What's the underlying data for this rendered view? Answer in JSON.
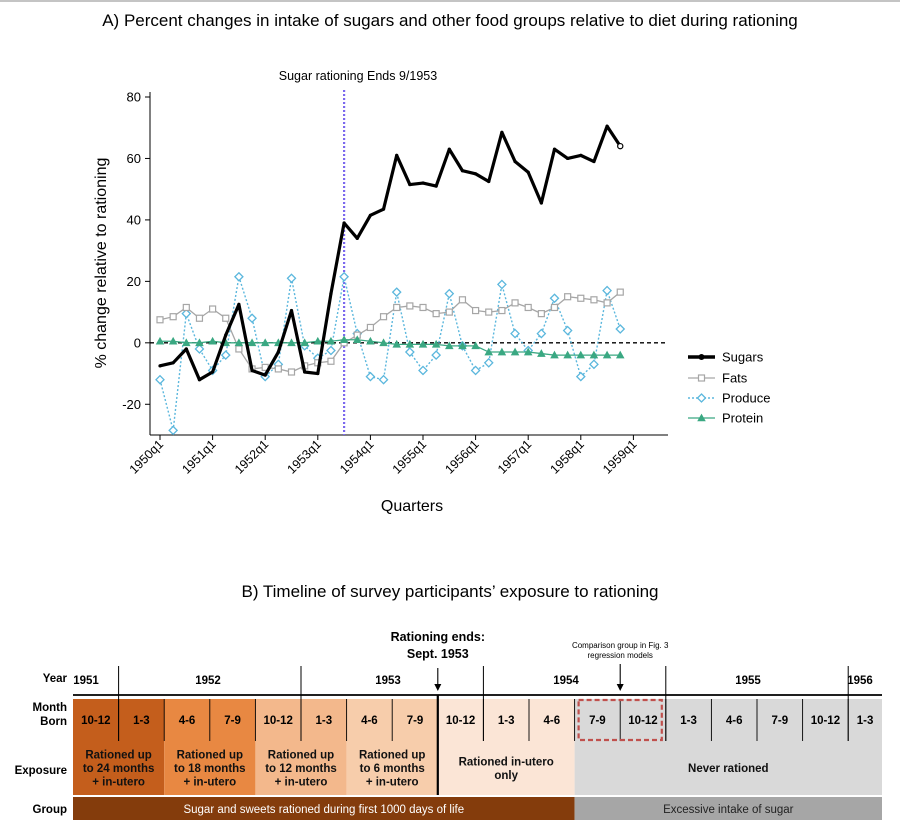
{
  "panel_a": {
    "title": "A) Percent changes in intake of sugars and other food groups relative to diet during rationing",
    "annotation": "Sugar rationing Ends 9/1953"
  },
  "panel_b": {
    "title": "B) Timeline of survey participants’ exposure to rationing",
    "rationing_ends_label": [
      "Rationing ends:",
      "Sept. 1953"
    ],
    "comparison_label": [
      "Comparison group in Fig. 3",
      "regression models"
    ],
    "row_labels": {
      "year": "Year",
      "month": [
        "Month",
        "Born"
      ],
      "exposure": "Exposure",
      "group": "Group"
    },
    "years": [
      "1951",
      "1952",
      "1953",
      "1954",
      "1955",
      "1956"
    ],
    "months": [
      "10-12",
      "1-3",
      "4-6",
      "7-9",
      "10-12",
      "1-3",
      "4-6",
      "7-9",
      "10-12",
      "1-3",
      "4-6",
      "7-9",
      "10-12",
      "1-3",
      "4-6",
      "7-9",
      "10-12",
      "1-3"
    ],
    "exposures": [
      [
        "Rationed up",
        "to 24 months",
        "+ in-utero"
      ],
      [
        "Rationed up",
        "to 18 months",
        "+ in-utero"
      ],
      [
        "Rationed up",
        "to 12 months",
        "+ in-utero"
      ],
      [
        "Rationed up",
        "to 6 months",
        "+ in-utero"
      ],
      [
        "Rationed in-utero",
        "only"
      ],
      [
        "Never rationed"
      ]
    ],
    "groups": [
      "Sugar and sweets rationed during first 1000 days of life",
      "Excessive intake of sugar"
    ],
    "colors": {
      "c24": "#c45e1c",
      "c18": "#e88842",
      "c12": "#f3b88c",
      "c6": "#f7cdab",
      "utero": "#fbe5d6",
      "never": "#d9d9d9",
      "group1": "#843c0c",
      "group2": "#a6a6a6",
      "dashed_box": "#c0504d"
    }
  },
  "chart_data": {
    "type": "line",
    "title": "A) Percent changes in intake of sugars and other food groups relative to diet during rationing",
    "xlabel": "Quarters",
    "ylabel": "% change relative to rationing",
    "ylim": [
      -30,
      80
    ],
    "yticks": [
      -20,
      0,
      20,
      40,
      60,
      80
    ],
    "x_tick_labels": [
      "1950q1",
      "1951q1",
      "1952q1",
      "1953q1",
      "1954q1",
      "1955q1",
      "1956q1",
      "1957q1",
      "1958q1",
      "1959q1"
    ],
    "x": [
      "1950q1",
      "1950q2",
      "1950q3",
      "1950q4",
      "1951q1",
      "1951q2",
      "1951q3",
      "1951q4",
      "1952q1",
      "1952q2",
      "1952q3",
      "1952q4",
      "1953q1",
      "1953q2",
      "1953q3",
      "1953q4",
      "1954q1",
      "1954q2",
      "1954q3",
      "1954q4",
      "1955q1",
      "1955q2",
      "1955q3",
      "1955q4",
      "1956q1",
      "1956q2",
      "1956q3",
      "1956q4",
      "1957q1",
      "1957q2",
      "1957q3",
      "1957q4",
      "1958q1",
      "1958q2",
      "1958q3",
      "1958q4",
      "1959q1"
    ],
    "reference_line": {
      "y": 0,
      "style": "dashed"
    },
    "event_line": {
      "x": "1953q3",
      "label": "Sugar rationing Ends 9/1953",
      "color": "#7b68ee"
    },
    "legend_position": "right",
    "grid": false,
    "series": [
      {
        "name": "Sugars",
        "color": "#000000",
        "marker": "circle",
        "style": "solid",
        "values": [
          -7.5,
          -6.5,
          -2,
          -12,
          -9.5,
          2.5,
          12.5,
          -9,
          -10.5,
          -3,
          10.5,
          -9.5,
          -10,
          16,
          39,
          34,
          41.5,
          43.5,
          61,
          51.5,
          52,
          51,
          63,
          56,
          55,
          52.5,
          68.5,
          59,
          55.5,
          45.5,
          63,
          60,
          61,
          59,
          70.5,
          64,
          null
        ]
      },
      {
        "name": "Fats",
        "color": "#a6a6a6",
        "marker": "square",
        "style": "solid",
        "values": [
          7.5,
          8.5,
          11.5,
          8,
          11,
          8,
          -2,
          -8.5,
          -8,
          -8.5,
          -9.5,
          -7.5,
          -6.5,
          -6,
          0,
          2.5,
          5,
          8.5,
          11.5,
          12,
          11.5,
          9.5,
          10,
          14,
          10.5,
          10,
          10.5,
          13,
          11.5,
          9.5,
          11.5,
          15,
          14.5,
          14,
          13,
          16.5,
          null
        ]
      },
      {
        "name": "Produce",
        "color": "#5bb7dd",
        "marker": "diamond",
        "style": "dotted",
        "values": [
          -12,
          -28.5,
          9.5,
          -2,
          -9,
          -4,
          21.5,
          8,
          -11,
          -7,
          21,
          -1,
          -5,
          -2.5,
          21.5,
          3,
          -11,
          -12,
          16.5,
          -3,
          -9,
          -4,
          16,
          -1,
          -9,
          -6.5,
          19,
          3,
          -2.5,
          3,
          14.5,
          4,
          -11,
          -7,
          17,
          4.5,
          null
        ]
      },
      {
        "name": "Protein",
        "color": "#3aa882",
        "marker": "triangle",
        "style": "solid",
        "values": [
          0.5,
          0.5,
          0,
          0,
          0.5,
          0,
          0,
          0,
          0,
          0,
          0,
          0,
          0.5,
          0.5,
          1,
          1,
          0.5,
          0,
          -0.5,
          -0.5,
          -0.5,
          -0.5,
          -1,
          -1,
          -1,
          -3,
          -3,
          -3,
          -3,
          -3.5,
          -4,
          -4,
          -4,
          -4,
          -4,
          -4,
          null
        ]
      }
    ]
  }
}
